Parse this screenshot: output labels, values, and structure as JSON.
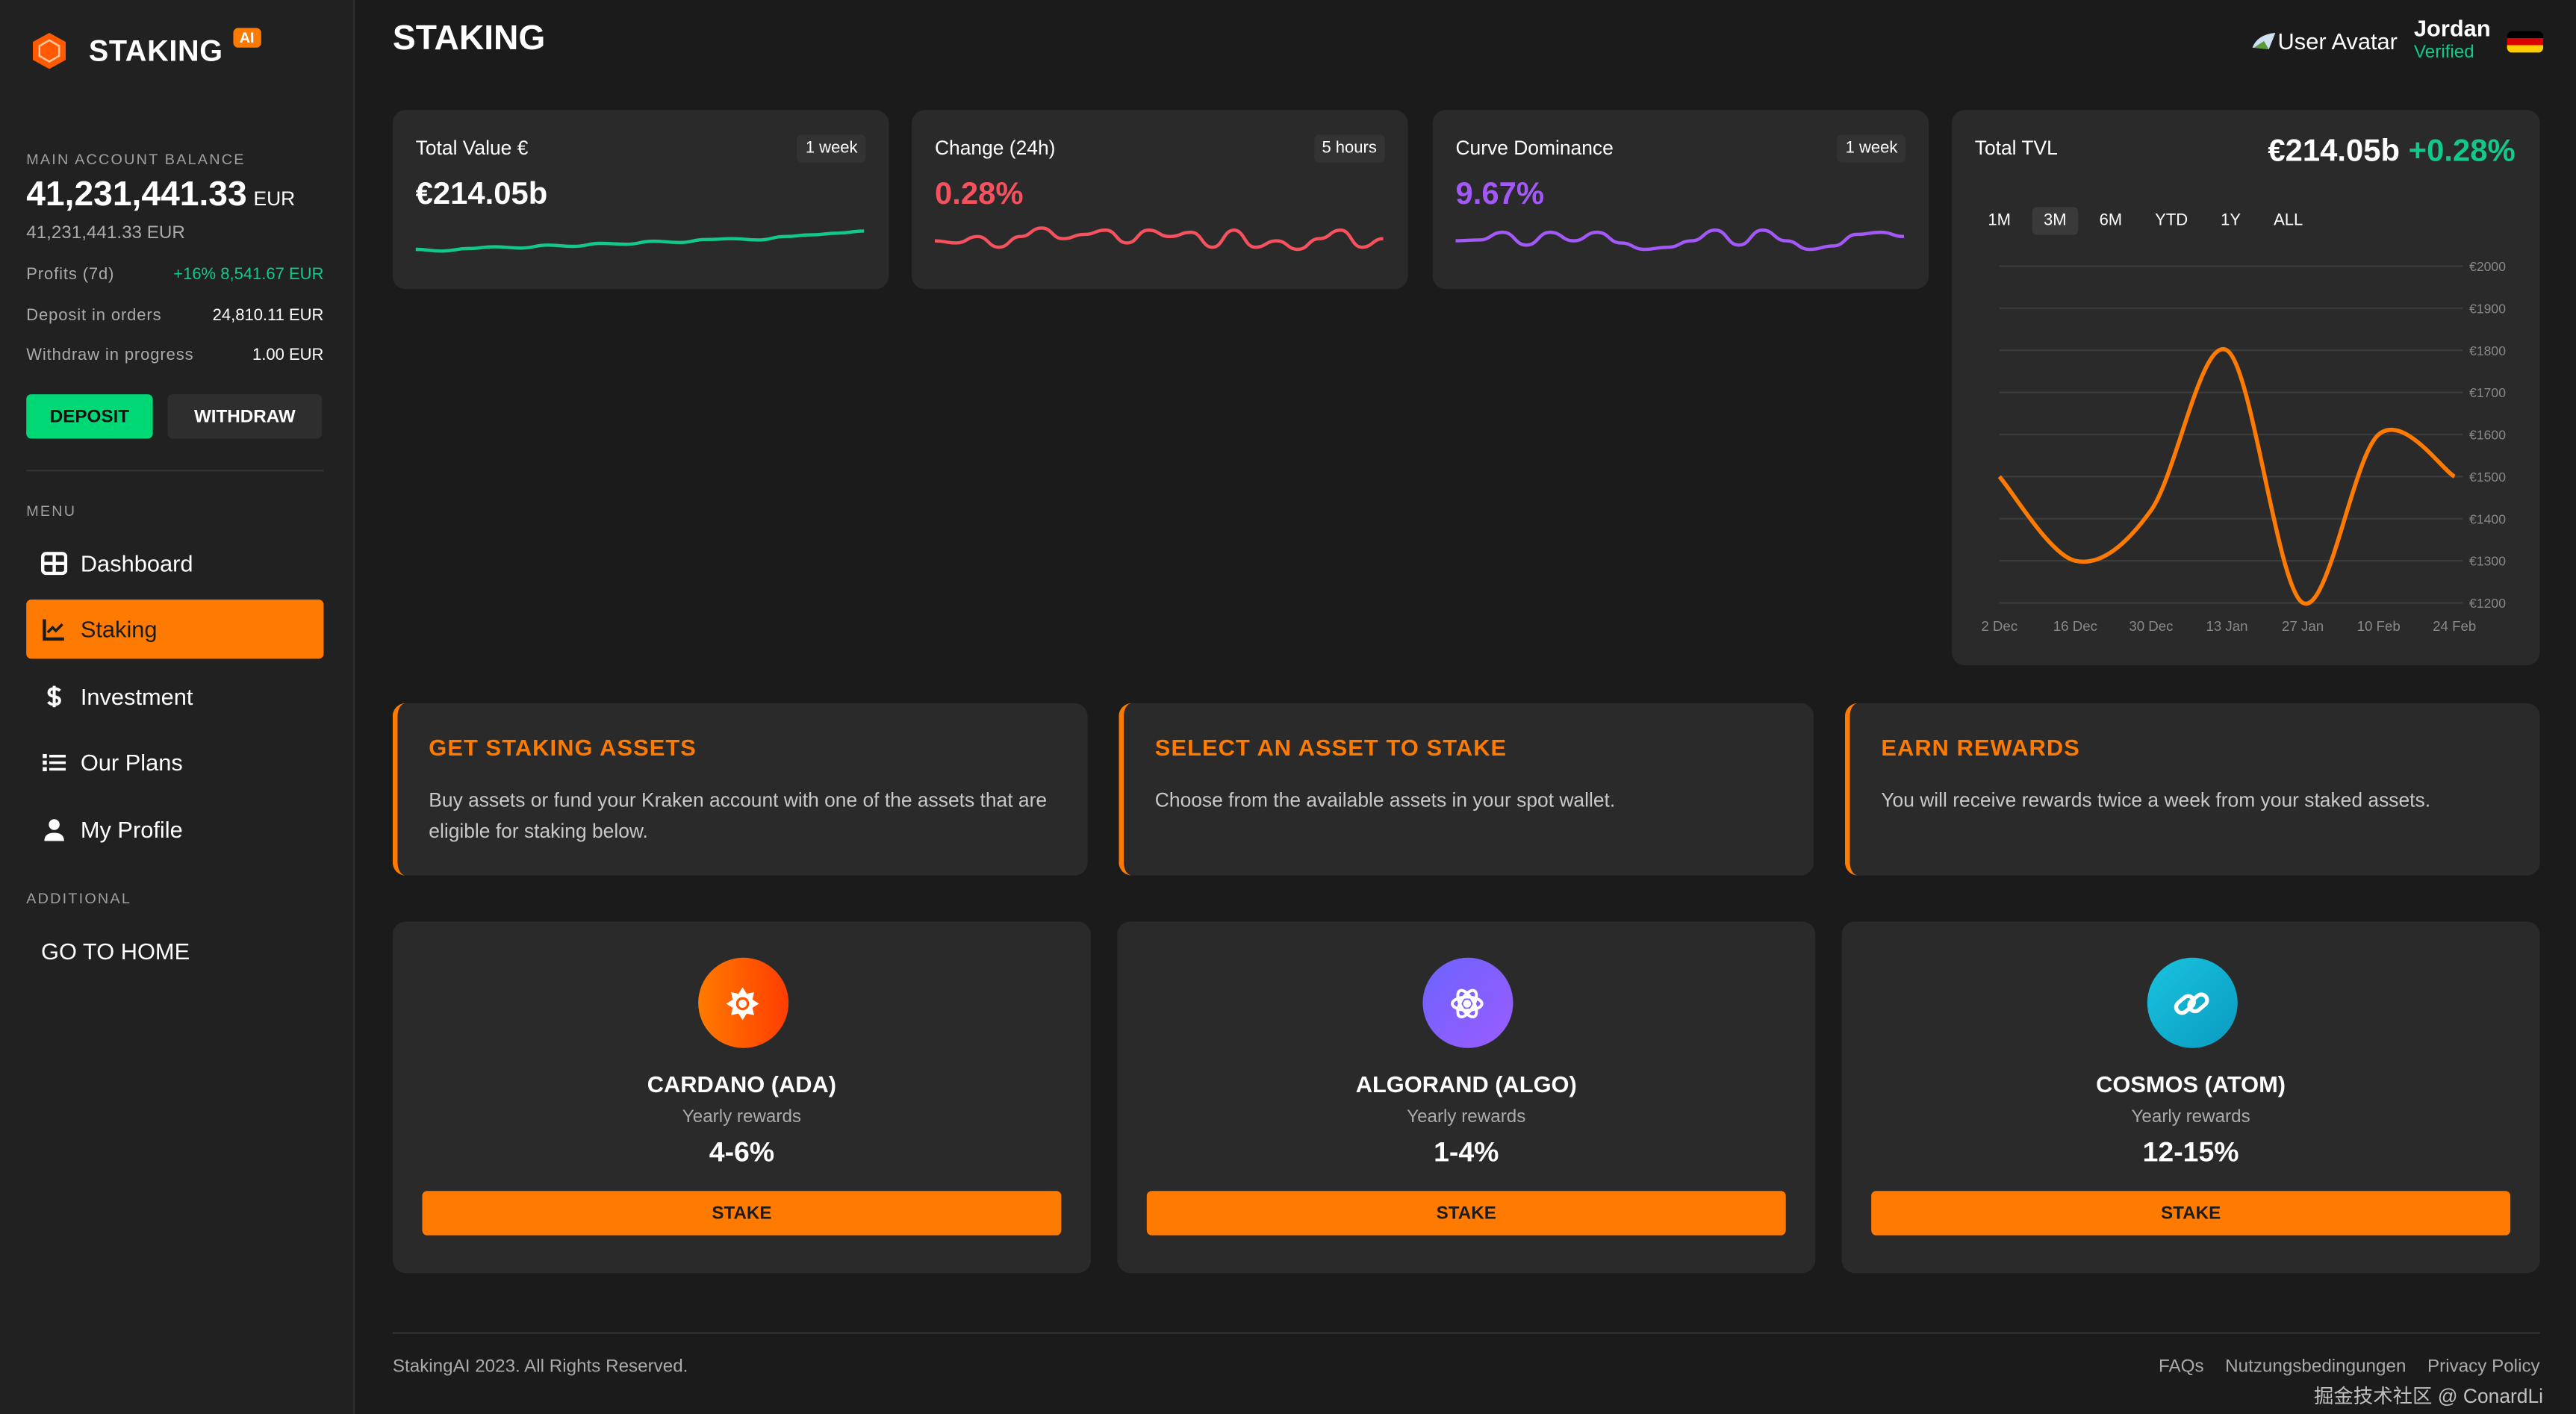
{
  "brand": {
    "name": "STAKING",
    "badge": "AI"
  },
  "account": {
    "label": "MAIN ACCOUNT BALANCE",
    "balance": "41,231,441.33",
    "currency": "EUR",
    "balance_secondary": "41,231,441.33 EUR",
    "rows": [
      {
        "label": "Profits (7d)",
        "value": "+16% 8,541.67 EUR"
      },
      {
        "label": "Deposit in orders",
        "value": "24,810.11 EUR"
      },
      {
        "label": "Withdraw in progress",
        "value": "1.00 EUR"
      }
    ],
    "deposit": "DEPOSIT",
    "withdraw": "WITHDRAW"
  },
  "menu": {
    "label": "MENU",
    "items": [
      {
        "label": "Dashboard"
      },
      {
        "label": "Staking"
      },
      {
        "label": "Investment"
      },
      {
        "label": "Our Plans"
      },
      {
        "label": "My Profile"
      }
    ],
    "additional_label": "ADDITIONAL",
    "home": "GO TO HOME"
  },
  "header": {
    "title": "STAKING",
    "avatar_alt": "User Avatar",
    "user_name": "Jordan",
    "user_status": "Verified"
  },
  "stats": [
    {
      "title": "Total Value €",
      "badge": "1 week",
      "value": "€214.05b",
      "color": "#13c98a",
      "sparkline": [
        2,
        1.6,
        2.2,
        2.6,
        2.3,
        3,
        2.7,
        3.4,
        3.2,
        3.9,
        3.6,
        4.3,
        4.5,
        4.2,
        5,
        5.4,
        5.8,
        6.3
      ]
    },
    {
      "title": "Change (24h)",
      "badge": "5 hours",
      "value": "0.28%",
      "color": "#f5515f",
      "sparkline": [
        4,
        3.5,
        5,
        2.5,
        5,
        7,
        4.5,
        5.5,
        6.5,
        3.5,
        6.5,
        5,
        6,
        2.5,
        6.5,
        2.5,
        4,
        2,
        4.5,
        6.5,
        2.5,
        4.5
      ]
    },
    {
      "title": "Curve Dominance",
      "badge": "1 week",
      "value": "9.67%",
      "color": "#a259f7",
      "sparkline": [
        4,
        4.2,
        6,
        3,
        6,
        4,
        6,
        3.5,
        2,
        2.5,
        4,
        6.5,
        3,
        6.5,
        4,
        2,
        2.8,
        5.5,
        6,
        5
      ]
    }
  ],
  "tvl": {
    "title": "Total TVL",
    "value": "€214.05b",
    "change": "+0.28%",
    "ranges": [
      "1M",
      "3M",
      "6M",
      "YTD",
      "1Y",
      "ALL"
    ],
    "selected_range": "3M"
  },
  "chart_data": {
    "type": "line",
    "title": "Total TVL",
    "categories": [
      "2 Dec",
      "16 Dec",
      "30 Dec",
      "13 Jan",
      "27 Jan",
      "10 Feb",
      "24 Feb"
    ],
    "values": [
      1500,
      1300,
      1420,
      1800,
      1200,
      1600,
      1500
    ],
    "ylim": [
      1200,
      2000
    ],
    "yticks": [
      "€2000",
      "€1900",
      "€1800",
      "€1700",
      "€1600",
      "€1500",
      "€1400",
      "€1300",
      "€1200"
    ],
    "color": "#ff7a00",
    "grid": true
  },
  "steps": [
    {
      "title": "GET STAKING ASSETS",
      "text": "Buy assets or fund your Kraken account with one of the assets that are eligible for staking below."
    },
    {
      "title": "SELECT AN ASSET TO STAKE",
      "text": "Choose from the available assets in your spot wallet."
    },
    {
      "title": "EARN REWARDS",
      "text": "You will receive rewards twice a week from your staked assets."
    }
  ],
  "assets": [
    {
      "name": "CARDANO (ADA)",
      "rewards_label": "Yearly rewards",
      "rewards": "4-6%",
      "button": "STAKE"
    },
    {
      "name": "ALGORAND (ALGO)",
      "rewards_label": "Yearly rewards",
      "rewards": "1-4%",
      "button": "STAKE"
    },
    {
      "name": "COSMOS (ATOM)",
      "rewards_label": "Yearly rewards",
      "rewards": "12-15%",
      "button": "STAKE"
    }
  ],
  "footer": {
    "copyright": "StakingAI 2023. All Rights Reserved.",
    "links": [
      "FAQs",
      "Nutzungsbedingungen",
      "Privacy Policy"
    ],
    "watermark": "掘金技术社区 @ ConardLi"
  }
}
